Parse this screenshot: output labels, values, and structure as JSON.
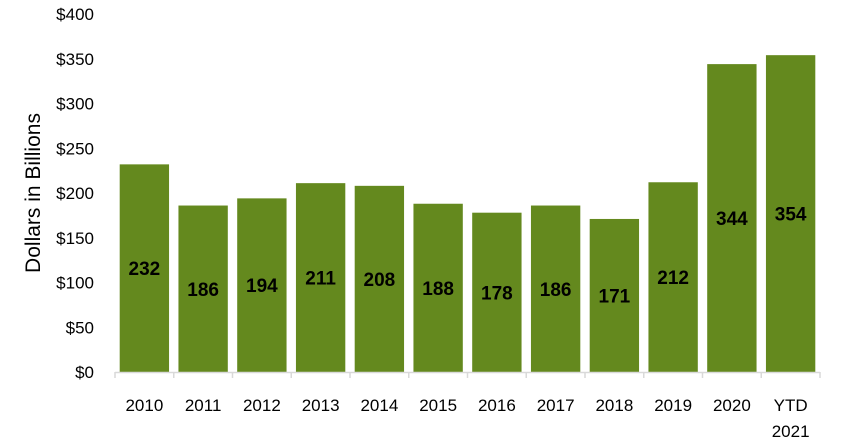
{
  "chart_data": {
    "type": "bar",
    "title": "",
    "xlabel": "",
    "ylabel": "Dollars in Billions",
    "categories": [
      [
        "2010"
      ],
      [
        "2011"
      ],
      [
        "2012"
      ],
      [
        "2013"
      ],
      [
        "2014"
      ],
      [
        "2015"
      ],
      [
        "2016"
      ],
      [
        "2017"
      ],
      [
        "2018"
      ],
      [
        "2019"
      ],
      [
        "2020"
      ],
      [
        "YTD",
        "2021"
      ]
    ],
    "values": [
      232,
      186,
      194,
      211,
      208,
      188,
      178,
      186,
      171,
      212,
      344,
      354
    ],
    "data_labels": [
      "232",
      "186",
      "194",
      "211",
      "208",
      "188",
      "178",
      "186",
      "171",
      "212",
      "344",
      "354"
    ],
    "ylim": [
      0,
      400
    ],
    "yticks": [
      0,
      50,
      100,
      150,
      200,
      250,
      300,
      350,
      400
    ],
    "ytick_labels": [
      "$0",
      "$50",
      "$100",
      "$150",
      "$200",
      "$250",
      "$300",
      "$350",
      "$400"
    ],
    "grid": false,
    "legend": "none",
    "colors": {
      "bar": "#64891E",
      "axis": "#D9D9D9",
      "text": "#000000"
    }
  }
}
